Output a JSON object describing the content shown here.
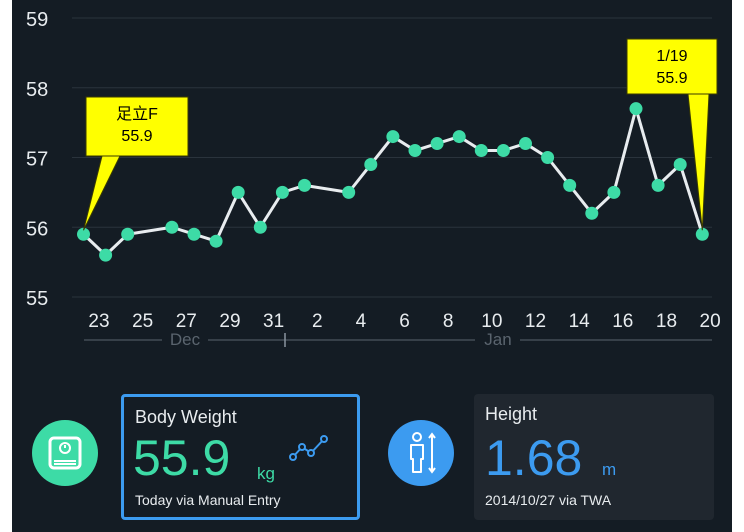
{
  "chart_data": {
    "type": "line",
    "yticks": [
      "59",
      "58",
      "57",
      "56",
      "55"
    ],
    "ylim": [
      55,
      59
    ],
    "x_tick_labels": [
      "23",
      "25",
      "27",
      "29",
      "31",
      "2",
      "4",
      "6",
      "8",
      "10",
      "12",
      "14",
      "16",
      "18",
      "20"
    ],
    "month_labels": [
      "Dec",
      "Jan"
    ],
    "series": [
      {
        "values": [
          {
            "date": "2014-12-22",
            "value": 55.9
          },
          {
            "date": "2014-12-23",
            "value": 55.6
          },
          {
            "date": "2014-12-24",
            "value": 55.9
          },
          {
            "date": "2014-12-26",
            "value": 56.0
          },
          {
            "date": "2014-12-27",
            "value": 55.9
          },
          {
            "date": "2014-12-28",
            "value": 55.8
          },
          {
            "date": "2014-12-29",
            "value": 56.5
          },
          {
            "date": "2014-12-30",
            "value": 56.0
          },
          {
            "date": "2014-12-31",
            "value": 56.5
          },
          {
            "date": "2015-01-01",
            "value": 56.6
          },
          {
            "date": "2015-01-03",
            "value": 56.5
          },
          {
            "date": "2015-01-04",
            "value": 56.9
          },
          {
            "date": "2015-01-05",
            "value": 57.3
          },
          {
            "date": "2015-01-06",
            "value": 57.1
          },
          {
            "date": "2015-01-07",
            "value": 57.2
          },
          {
            "date": "2015-01-08",
            "value": 57.3
          },
          {
            "date": "2015-01-09",
            "value": 57.1
          },
          {
            "date": "2015-01-10",
            "value": 57.1
          },
          {
            "date": "2015-01-11",
            "value": 57.2
          },
          {
            "date": "2015-01-12",
            "value": 57.0
          },
          {
            "date": "2015-01-13",
            "value": 56.6
          },
          {
            "date": "2015-01-14",
            "value": 56.2
          },
          {
            "date": "2015-01-15",
            "value": 56.5
          },
          {
            "date": "2015-01-16",
            "value": 57.7
          },
          {
            "date": "2015-01-17",
            "value": 56.6
          },
          {
            "date": "2015-01-18",
            "value": 56.9
          },
          {
            "date": "2015-01-19",
            "value": 55.9
          }
        ]
      }
    ],
    "annotations": [
      {
        "lines": [
          "足立F",
          "55.9"
        ],
        "point_index": 0
      },
      {
        "lines": [
          "1/19",
          "55.9"
        ],
        "point_index": 26
      }
    ],
    "grid": true
  },
  "weight_card": {
    "title": "Body Weight",
    "value": "55.9",
    "unit": "kg",
    "subtitle": "Today via Manual Entry"
  },
  "height_card": {
    "title": "Height",
    "value": "1.68",
    "unit": "m",
    "subtitle": "2014/10/27 via TWA"
  },
  "icons": {
    "weight": "scale-icon",
    "trend": "trend-line-icon",
    "height": "person-height-icon"
  },
  "colors": {
    "background": "#141c24",
    "accent_green": "#3ddba6",
    "accent_blue": "#3c9bf0",
    "callout_yellow": "#ffff00"
  }
}
